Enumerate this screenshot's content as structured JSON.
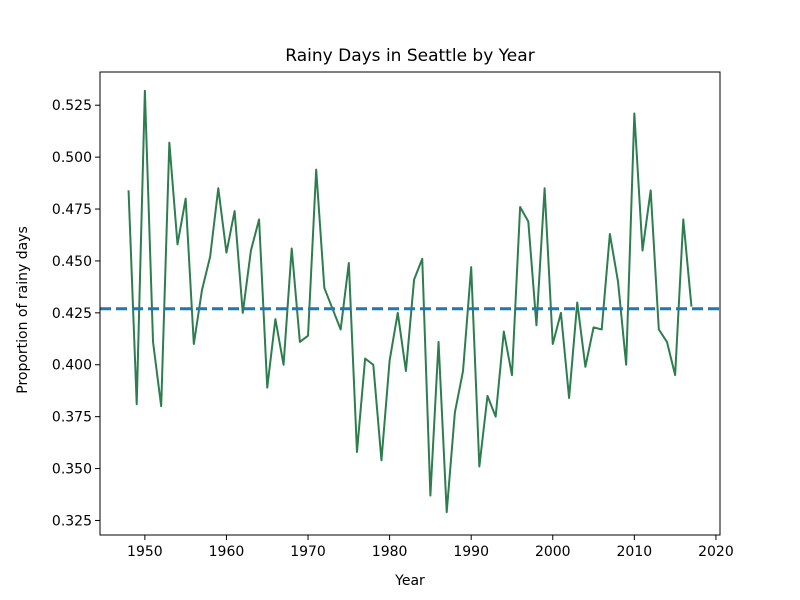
{
  "chart_data": {
    "type": "line",
    "title": "Rainy Days in Seattle by Year",
    "xlabel": "Year",
    "ylabel": "Proportion of rainy days",
    "xlim": [
      1944.5,
      2020.5
    ],
    "ylim": [
      0.318,
      0.541
    ],
    "xticks": [
      1950,
      1960,
      1970,
      1980,
      1990,
      2000,
      2010,
      2020
    ],
    "yticks": [
      0.325,
      0.35,
      0.375,
      0.4,
      0.425,
      0.45,
      0.475,
      0.5,
      0.525
    ],
    "ytick_labels": [
      "0.325",
      "0.350",
      "0.375",
      "0.400",
      "0.425",
      "0.450",
      "0.475",
      "0.500",
      "0.525"
    ],
    "grid": false,
    "series": [
      {
        "color": "#2e7d4f",
        "x": [
          1948,
          1949,
          1950,
          1951,
          1952,
          1953,
          1954,
          1955,
          1956,
          1957,
          1958,
          1959,
          1960,
          1961,
          1962,
          1963,
          1964,
          1965,
          1966,
          1967,
          1968,
          1969,
          1970,
          1971,
          1972,
          1973,
          1974,
          1975,
          1976,
          1977,
          1978,
          1979,
          1980,
          1981,
          1982,
          1983,
          1984,
          1985,
          1986,
          1987,
          1988,
          1989,
          1990,
          1991,
          1992,
          1993,
          1994,
          1995,
          1996,
          1997,
          1998,
          1999,
          2000,
          2001,
          2002,
          2003,
          2004,
          2005,
          2006,
          2007,
          2008,
          2009,
          2010,
          2011,
          2012,
          2013,
          2014,
          2015,
          2016,
          2017
        ],
        "y": [
          0.484,
          0.381,
          0.532,
          0.411,
          0.38,
          0.507,
          0.458,
          0.48,
          0.41,
          0.436,
          0.452,
          0.485,
          0.454,
          0.474,
          0.425,
          0.455,
          0.47,
          0.389,
          0.422,
          0.4,
          0.456,
          0.411,
          0.414,
          0.494,
          0.437,
          0.427,
          0.417,
          0.449,
          0.358,
          0.403,
          0.4,
          0.354,
          0.402,
          0.425,
          0.397,
          0.441,
          0.451,
          0.337,
          0.411,
          0.329,
          0.377,
          0.397,
          0.447,
          0.351,
          0.385,
          0.375,
          0.416,
          0.395,
          0.476,
          0.469,
          0.419,
          0.485,
          0.41,
          0.425,
          0.384,
          0.43,
          0.399,
          0.418,
          0.417,
          0.463,
          0.44,
          0.4,
          0.521,
          0.455,
          0.484,
          0.417,
          0.411,
          0.395,
          0.47,
          0.428
        ]
      }
    ],
    "reference_line": {
      "y": 0.427,
      "style": "dashed",
      "color": "#1f77b4"
    }
  }
}
